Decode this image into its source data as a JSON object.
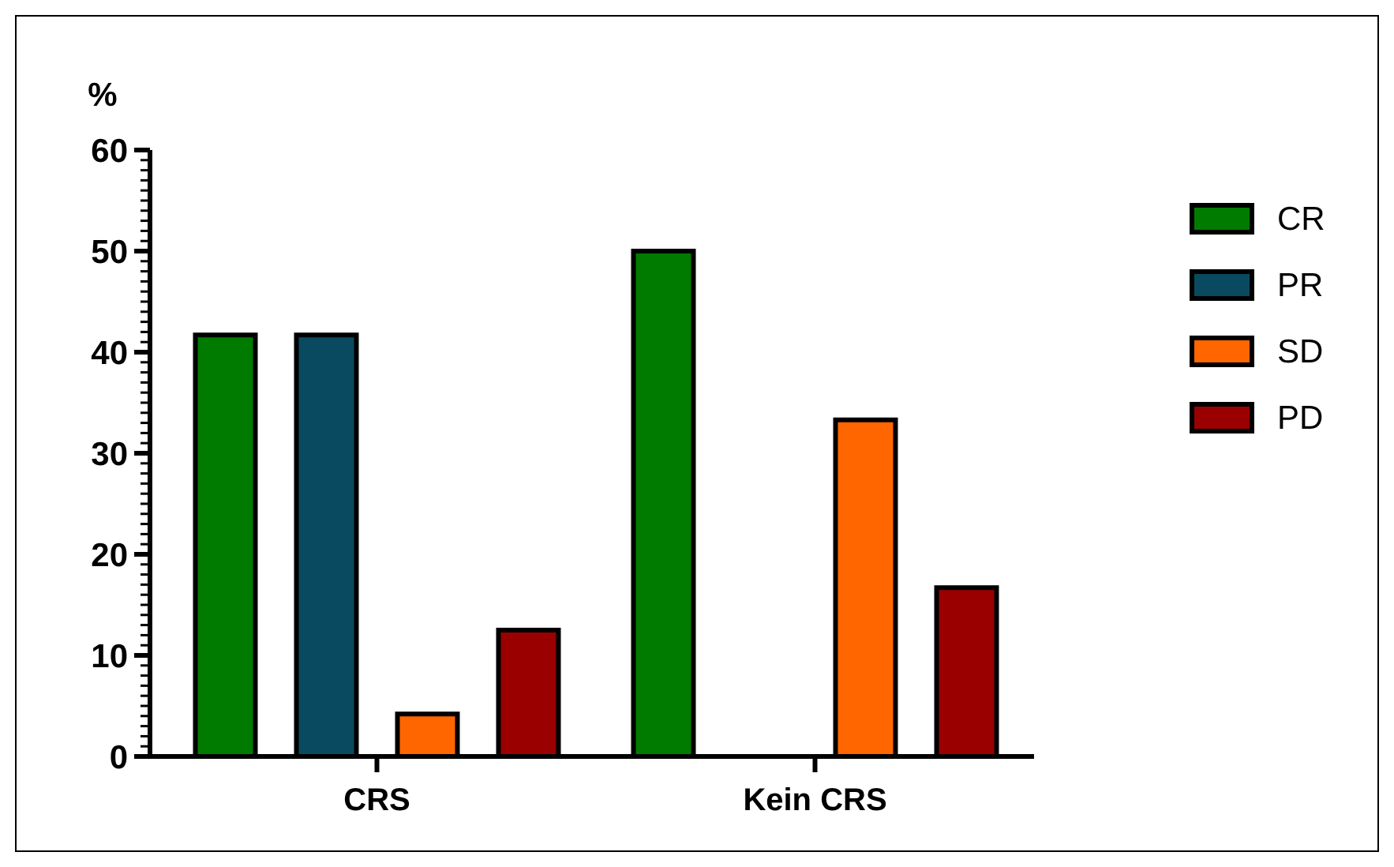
{
  "chart_data": {
    "type": "bar",
    "ylabel": "%",
    "categories": [
      "CRS",
      "Kein CRS"
    ],
    "series": [
      {
        "name": "CR",
        "color": "#007b00",
        "values": [
          41.7,
          50
        ]
      },
      {
        "name": "PR",
        "color": "#0a4a60",
        "values": [
          41.7,
          0
        ]
      },
      {
        "name": "SD",
        "color": "#ff6600",
        "values": [
          4.2,
          33.3
        ]
      },
      {
        "name": "PD",
        "color": "#9b0000",
        "values": [
          12.5,
          16.7
        ]
      }
    ],
    "ylim": [
      0,
      60
    ],
    "yticks": [
      0,
      {
        "value": 1,
        "label": null
      },
      {
        "value": 2,
        "label": null
      },
      {
        "value": 3,
        "label": null
      },
      {
        "value": 4,
        "label": null
      },
      {
        "value": 5,
        "label": null
      },
      {
        "value": 6,
        "label": null
      },
      {
        "value": 7,
        "label": null
      },
      {
        "value": 8,
        "label": null
      },
      {
        "value": 9,
        "label": null
      },
      10,
      {
        "value": 11,
        "label": null
      },
      {
        "value": 12,
        "label": null
      },
      {
        "value": 13,
        "label": null
      },
      {
        "value": 14,
        "label": null
      },
      {
        "value": 15,
        "label": null
      },
      {
        "value": 16,
        "label": null
      },
      {
        "value": 17,
        "label": null
      },
      {
        "value": 18,
        "label": null
      },
      {
        "value": 19,
        "label": null
      },
      20,
      {
        "value": 21,
        "label": null
      },
      {
        "value": 22,
        "label": null
      },
      {
        "value": 23,
        "label": null
      },
      {
        "value": 24,
        "label": null
      },
      {
        "value": 25,
        "label": null
      },
      {
        "value": 26,
        "label": null
      },
      {
        "value": 27,
        "label": null
      },
      {
        "value": 28,
        "label": null
      },
      {
        "value": 29,
        "label": null
      },
      30,
      {
        "value": 31,
        "label": null
      },
      {
        "value": 32,
        "label": null
      },
      {
        "value": 33,
        "label": null
      },
      {
        "value": 34,
        "label": null
      },
      {
        "value": 35,
        "label": null
      },
      {
        "value": 36,
        "label": null
      },
      {
        "value": 37,
        "label": null
      },
      {
        "value": 38,
        "label": null
      },
      {
        "value": 39,
        "label": null
      },
      40,
      {
        "value": 41,
        "label": null
      },
      {
        "value": 42,
        "label": null
      },
      {
        "value": 43,
        "label": null
      },
      {
        "value": 44,
        "label": null
      },
      {
        "value": 45,
        "label": null
      },
      {
        "value": 46,
        "label": null
      },
      {
        "value": 47,
        "label": null
      },
      {
        "value": 48,
        "label": null
      },
      {
        "value": 49,
        "label": null
      },
      50,
      {
        "value": 51,
        "label": null
      },
      {
        "value": 52,
        "label": null
      },
      {
        "value": 53,
        "label": null
      },
      {
        "value": 54,
        "label": null
      },
      {
        "value": 55,
        "label": null
      },
      {
        "value": 56,
        "label": null
      },
      {
        "value": 57,
        "label": null
      },
      {
        "value": 58,
        "label": null
      },
      {
        "value": 59,
        "label": null
      },
      60
    ],
    "grid": false,
    "legend": "right"
  }
}
